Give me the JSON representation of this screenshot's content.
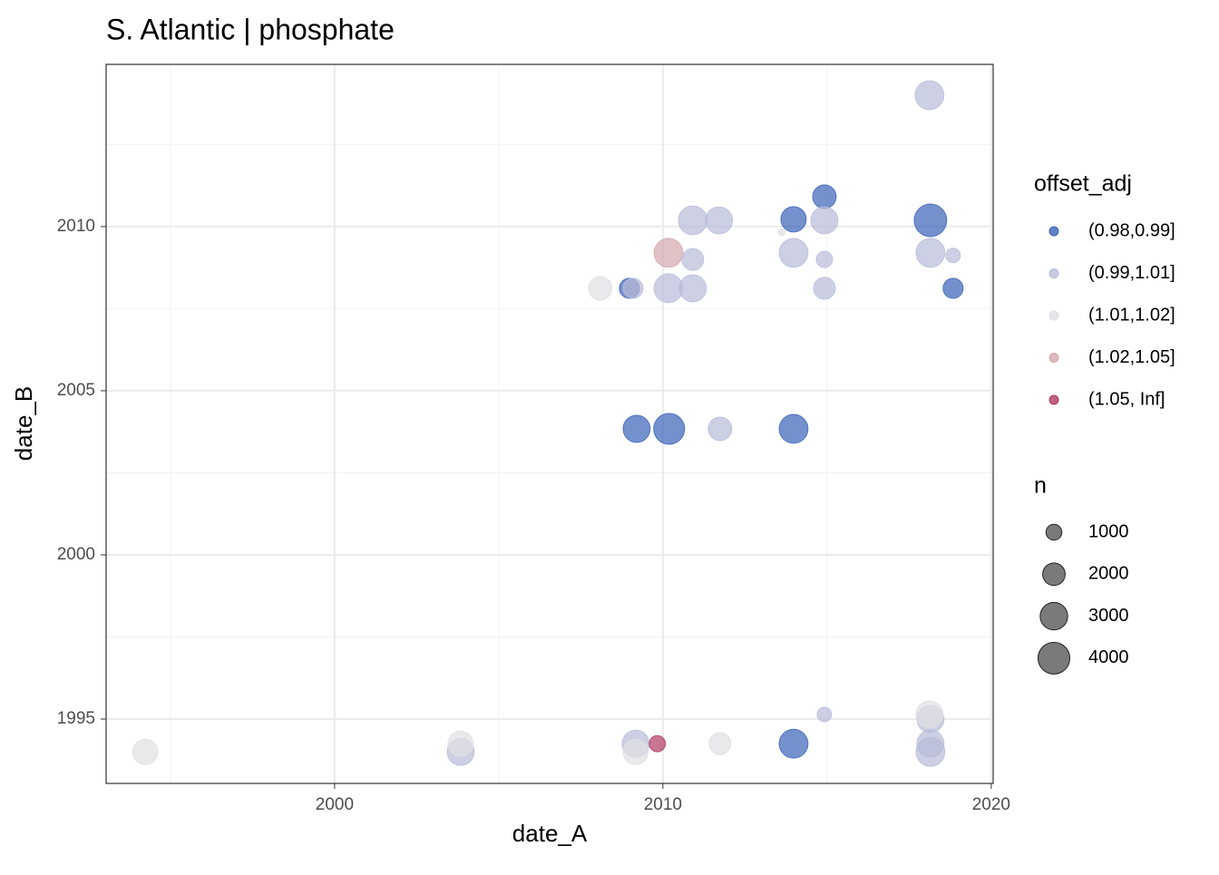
{
  "chart_data": {
    "type": "bubble",
    "title": "S. Atlantic | phosphate",
    "x_label": "date_A",
    "y_label": "date_B",
    "xlim": [
      1993.04,
      2020.06
    ],
    "ylim": [
      1993.04,
      2014.94
    ],
    "xticks": [
      2000,
      2010,
      2020
    ],
    "yticks": [
      1995,
      2000,
      2005,
      2010
    ],
    "x_minor_ticks": [
      1995,
      2005,
      2015
    ],
    "y_minor_ticks": [
      1997.5,
      2002.5,
      2007.5,
      2012.5
    ],
    "grid": true,
    "color_legend_title": "offset_adj",
    "size_legend_title": "n",
    "size_legend": [
      1000,
      2000,
      3000,
      4000
    ],
    "series": [
      {
        "name": "(0.98,0.99]",
        "color": "#3a62b8",
        "x": [
          2014.92,
          2013.98,
          2018.15,
          2008.98,
          2018.84,
          2009.2,
          2010.19,
          2013.98,
          2013.98
        ],
        "y": [
          2010.91,
          2010.22,
          2010.19,
          2008.12,
          2008.12,
          2003.84,
          2003.84,
          2003.84,
          1994.25
        ],
        "n": [
          2200,
          2550,
          4200,
          1600,
          1600,
          2900,
          3800,
          3300,
          3300
        ]
      },
      {
        "name": "(0.99,1.01]",
        "color": "#b8bbd8",
        "x": [
          2018.12,
          2010.91,
          2011.71,
          2014.92,
          2010.91,
          2013.98,
          2014.92,
          2018.15,
          2018.84,
          2009.09,
          2010.17,
          2010.91,
          2014.92,
          2011.74,
          2014.92,
          2018.15,
          2003.84,
          2009.17,
          2018.15,
          2018.15
        ],
        "y": [
          2014.0,
          2010.19,
          2010.19,
          2010.19,
          2009.0,
          2009.2,
          2009.0,
          2009.2,
          2009.12,
          2008.12,
          2008.12,
          2008.12,
          2008.12,
          2003.84,
          1995.14,
          1995.0,
          1994.0,
          1994.25,
          1994.25,
          1994.0
        ],
        "n": [
          3300,
          3300,
          2900,
          2900,
          1900,
          3300,
          1050,
          3300,
          830,
          1600,
          3300,
          2900,
          1900,
          2200,
          830,
          2900,
          2900,
          2900,
          2900,
          3300
        ]
      },
      {
        "name": "(1.01,1.02]",
        "color": "#e0e0e3",
        "x": [
          2013.62,
          2008.09,
          2018.12,
          1994.23,
          2003.84,
          2009.17,
          2011.74
        ],
        "y": [
          2009.83,
          2008.12,
          1995.14,
          1994.0,
          1994.25,
          1994.0,
          1994.25
        ],
        "n": [
          200,
          2200,
          2900,
          2550,
          2550,
          2550,
          1900
        ]
      },
      {
        "name": "(1.02,1.05]",
        "color": "#d3a7ae",
        "x": [
          2010.17
        ],
        "y": [
          2009.2
        ],
        "n": [
          3300
        ]
      },
      {
        "name": "(1.05, Inf]",
        "color": "#b03a62",
        "x": [
          2009.83
        ],
        "y": [
          1994.25
        ],
        "n": [
          1050
        ]
      }
    ]
  }
}
